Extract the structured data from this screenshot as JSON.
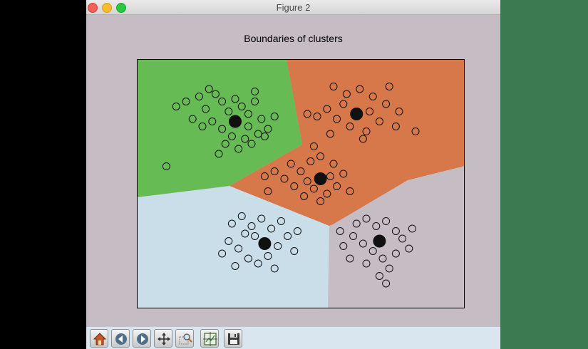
{
  "window": {
    "title": "Figure 2"
  },
  "chart_data": {
    "type": "scatter",
    "title": "Boundaries of clusters",
    "xlabel": "",
    "ylabel": "",
    "xlim": [
      0,
      10
    ],
    "ylim": [
      0,
      10
    ],
    "axes_ticks_visible": false,
    "region_colors": {
      "top-left": "#67bb55",
      "top-right-and-center": "#d6784a",
      "bottom-left": "#cadeea",
      "bottom-right": "#c6bcc4"
    },
    "centroid_color": "#111111",
    "point_style": "hollow black circle",
    "centroids": [
      {
        "x": 3.0,
        "y": 7.5
      },
      {
        "x": 6.7,
        "y": 7.8
      },
      {
        "x": 5.6,
        "y": 5.2
      },
      {
        "x": 3.9,
        "y": 2.6
      },
      {
        "x": 7.4,
        "y": 2.7
      }
    ],
    "points": [
      {
        "x": 1.2,
        "y": 8.1
      },
      {
        "x": 1.5,
        "y": 8.3
      },
      {
        "x": 1.9,
        "y": 8.5
      },
      {
        "x": 2.1,
        "y": 8.0
      },
      {
        "x": 2.4,
        "y": 8.6
      },
      {
        "x": 2.6,
        "y": 8.3
      },
      {
        "x": 2.8,
        "y": 7.9
      },
      {
        "x": 3.0,
        "y": 8.4
      },
      {
        "x": 3.2,
        "y": 8.1
      },
      {
        "x": 3.4,
        "y": 7.8
      },
      {
        "x": 3.6,
        "y": 8.3
      },
      {
        "x": 3.8,
        "y": 7.6
      },
      {
        "x": 4.0,
        "y": 7.2
      },
      {
        "x": 3.7,
        "y": 7.0
      },
      {
        "x": 3.3,
        "y": 6.8
      },
      {
        "x": 2.9,
        "y": 6.9
      },
      {
        "x": 2.6,
        "y": 7.2
      },
      {
        "x": 2.3,
        "y": 7.5
      },
      {
        "x": 2.0,
        "y": 7.3
      },
      {
        "x": 1.7,
        "y": 7.6
      },
      {
        "x": 2.7,
        "y": 6.6
      },
      {
        "x": 3.1,
        "y": 6.4
      },
      {
        "x": 3.5,
        "y": 6.6
      },
      {
        "x": 3.9,
        "y": 6.9
      },
      {
        "x": 4.2,
        "y": 7.7
      },
      {
        "x": 2.5,
        "y": 6.2
      },
      {
        "x": 3.4,
        "y": 7.3
      },
      {
        "x": 3.6,
        "y": 8.7
      },
      {
        "x": 2.2,
        "y": 8.8
      },
      {
        "x": 0.9,
        "y": 5.7
      },
      {
        "x": 6.0,
        "y": 8.9
      },
      {
        "x": 6.4,
        "y": 8.6
      },
      {
        "x": 6.8,
        "y": 8.8
      },
      {
        "x": 7.2,
        "y": 8.5
      },
      {
        "x": 7.6,
        "y": 8.2
      },
      {
        "x": 8.0,
        "y": 7.9
      },
      {
        "x": 7.9,
        "y": 7.3
      },
      {
        "x": 7.4,
        "y": 7.5
      },
      {
        "x": 7.0,
        "y": 7.1
      },
      {
        "x": 6.5,
        "y": 7.3
      },
      {
        "x": 6.1,
        "y": 7.6
      },
      {
        "x": 5.8,
        "y": 8.0
      },
      {
        "x": 5.5,
        "y": 7.7
      },
      {
        "x": 6.3,
        "y": 8.2
      },
      {
        "x": 7.1,
        "y": 7.9
      },
      {
        "x": 6.9,
        "y": 6.8
      },
      {
        "x": 5.9,
        "y": 7.0
      },
      {
        "x": 5.2,
        "y": 7.8
      },
      {
        "x": 8.5,
        "y": 7.1
      },
      {
        "x": 7.7,
        "y": 8.9
      },
      {
        "x": 4.7,
        "y": 5.8
      },
      {
        "x": 5.0,
        "y": 5.5
      },
      {
        "x": 5.3,
        "y": 5.9
      },
      {
        "x": 5.6,
        "y": 6.1
      },
      {
        "x": 6.0,
        "y": 5.8
      },
      {
        "x": 6.3,
        "y": 5.4
      },
      {
        "x": 6.1,
        "y": 4.9
      },
      {
        "x": 5.8,
        "y": 4.6
      },
      {
        "x": 5.4,
        "y": 4.8
      },
      {
        "x": 5.1,
        "y": 4.5
      },
      {
        "x": 4.8,
        "y": 4.9
      },
      {
        "x": 4.5,
        "y": 5.2
      },
      {
        "x": 4.2,
        "y": 5.5
      },
      {
        "x": 5.2,
        "y": 5.1
      },
      {
        "x": 5.9,
        "y": 5.3
      },
      {
        "x": 6.5,
        "y": 4.7
      },
      {
        "x": 4.0,
        "y": 4.7
      },
      {
        "x": 5.6,
        "y": 4.3
      },
      {
        "x": 3.9,
        "y": 5.3
      },
      {
        "x": 5.4,
        "y": 6.5
      },
      {
        "x": 2.9,
        "y": 3.4
      },
      {
        "x": 3.2,
        "y": 3.7
      },
      {
        "x": 3.5,
        "y": 3.3
      },
      {
        "x": 3.8,
        "y": 3.6
      },
      {
        "x": 4.1,
        "y": 3.2
      },
      {
        "x": 4.4,
        "y": 3.5
      },
      {
        "x": 4.6,
        "y": 2.9
      },
      {
        "x": 4.3,
        "y": 2.5
      },
      {
        "x": 4.0,
        "y": 2.1
      },
      {
        "x": 3.7,
        "y": 1.8
      },
      {
        "x": 3.4,
        "y": 2.0
      },
      {
        "x": 3.1,
        "y": 2.4
      },
      {
        "x": 2.8,
        "y": 2.7
      },
      {
        "x": 2.6,
        "y": 2.2
      },
      {
        "x": 3.0,
        "y": 1.7
      },
      {
        "x": 3.6,
        "y": 2.9
      },
      {
        "x": 4.8,
        "y": 2.3
      },
      {
        "x": 4.2,
        "y": 1.6
      },
      {
        "x": 3.3,
        "y": 3.0
      },
      {
        "x": 4.9,
        "y": 3.1
      },
      {
        "x": 6.7,
        "y": 3.4
      },
      {
        "x": 7.0,
        "y": 3.6
      },
      {
        "x": 7.3,
        "y": 3.3
      },
      {
        "x": 7.6,
        "y": 3.5
      },
      {
        "x": 7.9,
        "y": 3.1
      },
      {
        "x": 8.1,
        "y": 2.8
      },
      {
        "x": 8.3,
        "y": 2.4
      },
      {
        "x": 7.9,
        "y": 2.2
      },
      {
        "x": 7.5,
        "y": 2.0
      },
      {
        "x": 7.2,
        "y": 2.3
      },
      {
        "x": 6.9,
        "y": 2.6
      },
      {
        "x": 6.6,
        "y": 2.9
      },
      {
        "x": 6.3,
        "y": 2.5
      },
      {
        "x": 6.5,
        "y": 2.0
      },
      {
        "x": 7.0,
        "y": 1.8
      },
      {
        "x": 7.7,
        "y": 1.6
      },
      {
        "x": 8.4,
        "y": 3.2
      },
      {
        "x": 7.4,
        "y": 1.3
      },
      {
        "x": 6.2,
        "y": 3.1
      },
      {
        "x": 7.6,
        "y": 1.0
      }
    ]
  },
  "toolbar": {
    "buttons": [
      {
        "icon": "home-icon"
      },
      {
        "icon": "back-arrow-icon"
      },
      {
        "icon": "forward-arrow-icon"
      },
      {
        "icon": "pan-move-icon"
      },
      {
        "icon": "zoom-icon"
      },
      {
        "icon": "configure-subplots-icon"
      },
      {
        "icon": "save-floppy-icon"
      }
    ]
  }
}
